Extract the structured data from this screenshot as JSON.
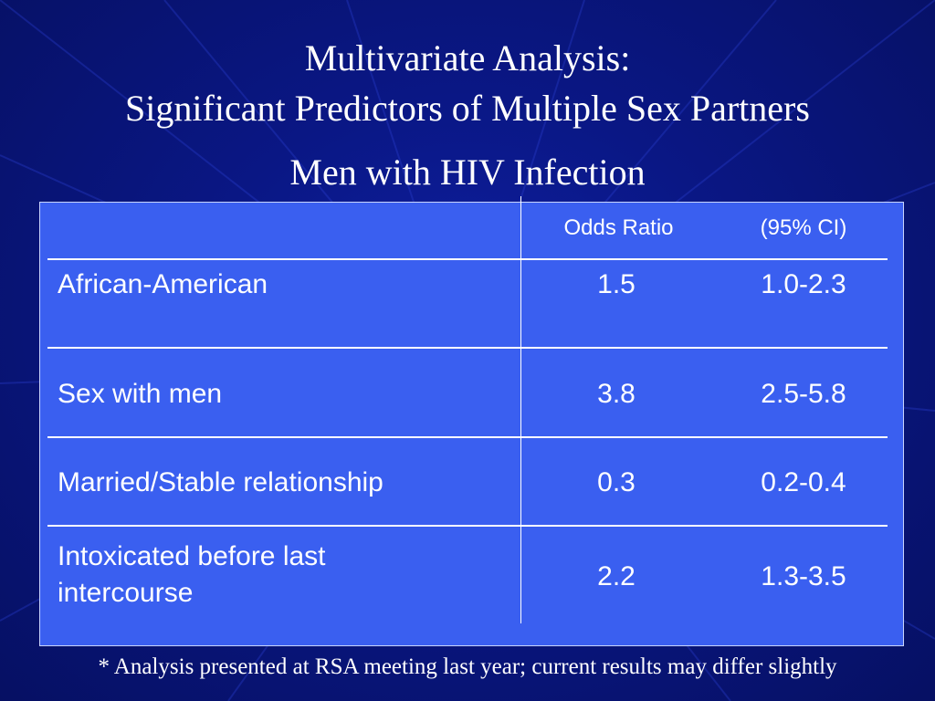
{
  "slide": {
    "title_line_1": "Multivariate Analysis:",
    "title_line_2": "Significant Predictors of Multiple Sex Partners",
    "subtitle": "Men with HIV Infection",
    "footnote": "* Analysis presented at RSA meeting last year; current results may differ slightly"
  },
  "table": {
    "headers": {
      "odds_ratio": "Odds Ratio",
      "ci": "(95% CI)"
    },
    "rows": [
      {
        "label": "African-American",
        "odds_ratio": "1.5",
        "ci": "1.0-2.3"
      },
      {
        "label": "Sex with men",
        "odds_ratio": "3.8",
        "ci": "2.5-5.8"
      },
      {
        "label": "Married/Stable relationship",
        "odds_ratio": "0.3",
        "ci": "0.2-0.4"
      },
      {
        "label": "Intoxicated before last intercourse",
        "odds_ratio": "2.2",
        "ci": "1.3-3.5"
      }
    ]
  },
  "colors": {
    "background": "#0a1785",
    "table_fill": "#3a5ff0",
    "text": "#ffffff"
  }
}
